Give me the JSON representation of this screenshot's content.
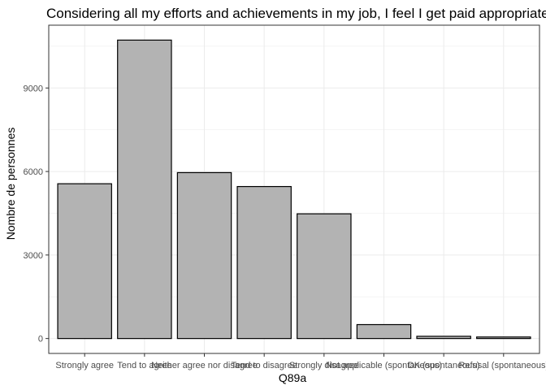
{
  "chart_data": {
    "type": "bar",
    "title": "Considering all my efforts and achievements in my job, I feel I get paid appropriately",
    "xlabel": "Q89a",
    "ylabel": "Nombre de personnes",
    "categories": [
      "Strongly agree",
      "Tend to agree",
      "Neither agree nor disagree",
      "Tend to disagree",
      "Strongly disagree",
      "Not applicable (spontaneous)",
      "DK (spontaneous)",
      "Refusal (spontaneous)"
    ],
    "values": [
      5560,
      10720,
      5960,
      5460,
      4480,
      500,
      80,
      55
    ],
    "ylim": [
      -536,
      11256
    ],
    "yticks": [
      0,
      3000,
      6000,
      9000
    ],
    "grid": true,
    "colors": {
      "bar_fill": "#b3b3b3",
      "bar_stroke": "#000000",
      "grid": "#ebebeb",
      "panel_border": "#333333"
    }
  }
}
